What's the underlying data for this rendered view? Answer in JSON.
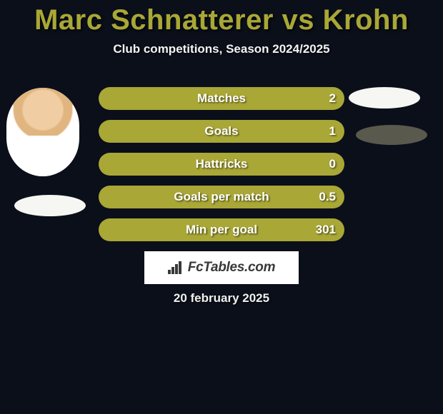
{
  "title": {
    "player1": "Marc Schnatterer",
    "vs": "vs",
    "player2": "Krohn",
    "color": "#a9a736",
    "fontsize": 40
  },
  "subtitle": "Club competitions, Season 2024/2025",
  "background_color": "#0a0f1a",
  "bar_style": {
    "fill_color": "#a9a736",
    "border_radius": 18,
    "height": 32,
    "gap": 14,
    "label_color": "#ffffff",
    "label_fontsize": 17
  },
  "stats": [
    {
      "label": "Matches",
      "value": "2"
    },
    {
      "label": "Goals",
      "value": "1"
    },
    {
      "label": "Hattricks",
      "value": "0"
    },
    {
      "label": "Goals per match",
      "value": "0.5"
    },
    {
      "label": "Min per goal",
      "value": "301"
    }
  ],
  "ovals": {
    "left": {
      "color": "#f6f6f3"
    },
    "right_top": {
      "color": "#f6f6f3"
    },
    "right_mid": {
      "color": "#59594e"
    }
  },
  "logo_text": "FcTables.com",
  "date": "20 february 2025"
}
